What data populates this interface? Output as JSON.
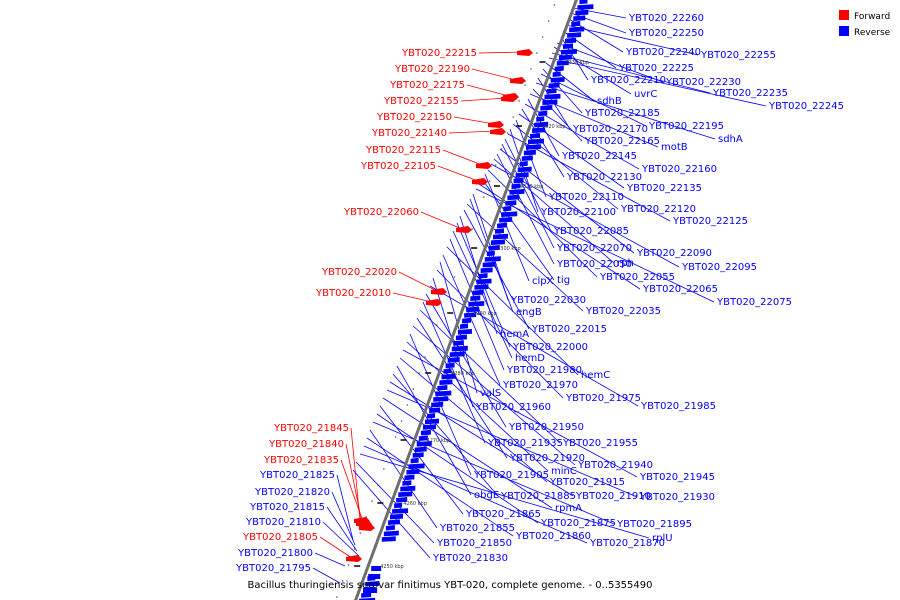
{
  "colors": {
    "forward": "#ff0000",
    "reverse": "#0000ff",
    "backbone": "#6e6e6e"
  },
  "legend": {
    "forward": "Forward",
    "reverse": "Reverse"
  },
  "caption": "Bacillus thuringiensis serovar finitimus YBT-020, complete genome. - 0..5355490",
  "ticks": [
    "4250 kbp",
    "4260 kbp",
    "4270 kbp",
    "4280 kbp",
    "4290 kbp",
    "4300 kbp",
    "4310 kbp",
    "4320 kbp",
    "4330 kbp"
  ],
  "forward_genes": [
    "YBT020_22215",
    "YBT020_22190",
    "YBT020_22175",
    "YBT020_22155",
    "YBT020_22150",
    "YBT020_22140",
    "YBT020_22115",
    "YBT020_22105",
    "YBT020_22060",
    "YBT020_22020",
    "YBT020_22010",
    "YBT020_21845",
    "YBT020_21840",
    "YBT020_21835",
    "YBT020_21805"
  ],
  "reverse_genes_left": [
    "YBT020_21825",
    "YBT020_21820",
    "YBT020_21815",
    "YBT020_21810",
    "YBT020_21800",
    "YBT020_21795"
  ],
  "reverse_genes_right": [
    "YBT020_22260",
    "YBT020_22250",
    "YBT020_22240",
    "YBT020_22255",
    "YBT020_22225",
    "YBT020_22210",
    "YBT020_22230",
    "uvrC",
    "YBT020_22235",
    "YBT020_22245",
    "sdhB",
    "YBT020_22185",
    "YBT020_22195",
    "YBT020_22170",
    "sdhA",
    "YBT020_22165",
    "motB",
    "YBT020_22145",
    "YBT020_22160",
    "YBT020_22130",
    "YBT020_22135",
    "YBT020_22110",
    "YBT020_22120",
    "YBT020_22100",
    "YBT020_22125",
    "YBT020_22085",
    "YBT020_22070",
    "YBT020_22090",
    "YBT020_22050",
    "rph",
    "YBT020_22095",
    "YBT020_22055",
    "clpX",
    "tig",
    "YBT020_22065",
    "YBT020_22075",
    "YBT020_22030",
    "engB",
    "YBT020_22035",
    "YBT020_22015",
    "hemA",
    "YBT020_22000",
    "hemD",
    "YBT020_21980",
    "hemC",
    "YBT020_21970",
    "valS",
    "YBT020_21975",
    "YBT020_21960",
    "YBT020_21985",
    "YBT020_21950",
    "YBT020_21935",
    "YBT020_21955",
    "YBT020_21920",
    "YBT020_21940",
    "YBT020_21905",
    "minC",
    "YBT020_21945",
    "YBT020_21915",
    "obgE",
    "YBT020_21885",
    "YBT020_21910",
    "YBT020_21930",
    "rpmA",
    "YBT020_21865",
    "YBT020_21875",
    "YBT020_21895",
    "YBT020_21855",
    "YBT020_21860",
    "YBT020_21870",
    "rplU",
    "YBT020_21850",
    "YBT020_21830"
  ]
}
